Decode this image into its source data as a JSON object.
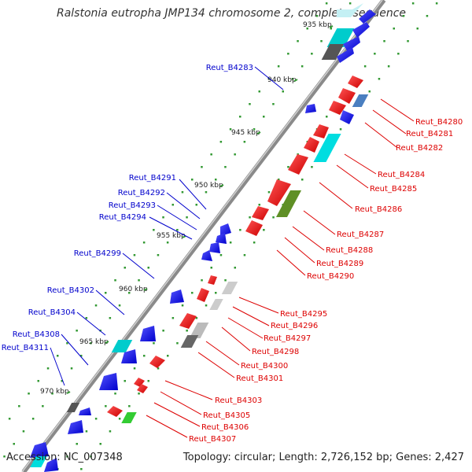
{
  "title": "Ralstonia eutropha JMP134 chromosome 2, complete sequence",
  "footer": {
    "accession": "Accession: NC_007348",
    "summary": "Topology: circular; Length: 2,726,152 bp; Genes: 2,427"
  },
  "colors": {
    "forward": "#ff0000",
    "reverse": "#0000ff",
    "backbone": "#888888",
    "tick_dot": "#339933"
  },
  "scale_labels": [
    "935 kbp",
    "940 kbp",
    "945 kbp",
    "950 kbp",
    "955 kbp",
    "960 kbp",
    "965 kbp",
    "970 kbp"
  ],
  "left_labels": [
    "Reut_B4283",
    "Reut_B4291",
    "Reut_B4292",
    "Reut_B4293",
    "Reut_B4294",
    "Reut_B4299",
    "Reut_B4302",
    "Reut_B4304",
    "Reut_B4308",
    "Reut_B4311"
  ],
  "right_labels": [
    "Reut_B4280",
    "Reut_B4281",
    "Reut_B4282",
    "Reut_B4284",
    "Reut_B4285",
    "Reut_B4286",
    "Reut_B4287",
    "Reut_B4288",
    "Reut_B4289",
    "Reut_B4290",
    "Reut_B4295",
    "Reut_B4296",
    "Reut_B4297",
    "Reut_B4298",
    "Reut_B4300",
    "Reut_B4301",
    "Reut_B4303",
    "Reut_B4305",
    "Reut_B4306",
    "Reut_B4307"
  ]
}
